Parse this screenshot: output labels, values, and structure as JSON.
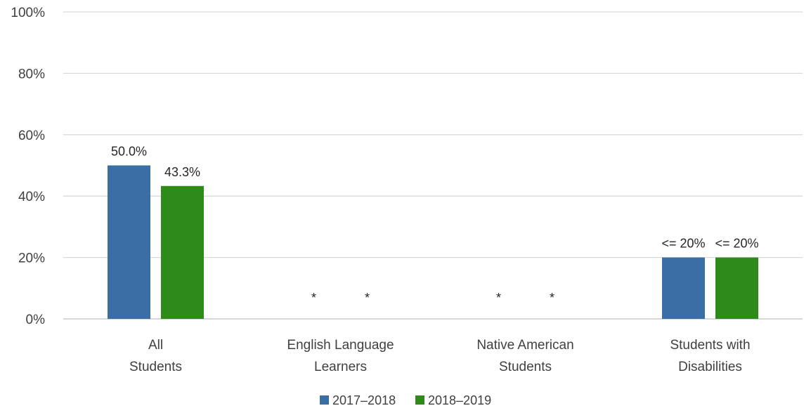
{
  "chart_data": {
    "type": "bar",
    "categories": [
      [
        "All",
        "Students"
      ],
      [
        "English Language",
        "Learners"
      ],
      [
        "Native American",
        "Students"
      ],
      [
        "Students with",
        "Disabilities"
      ]
    ],
    "series": [
      {
        "name": "2017–2018",
        "color": "#3a6ea5",
        "values": [
          50.0,
          null,
          null,
          20
        ],
        "labels": [
          "50.0%",
          "*",
          "*",
          "<= 20%"
        ]
      },
      {
        "name": "2018–2019",
        "color": "#2e8b1a",
        "values": [
          43.3,
          null,
          null,
          20
        ],
        "labels": [
          "43.3%",
          "*",
          "*",
          "<= 20%"
        ]
      }
    ],
    "yticks": [
      "0%",
      "20%",
      "40%",
      "60%",
      "80%",
      "100%"
    ],
    "ylim": [
      0,
      100
    ],
    "grid": true,
    "legend_position": "bottom"
  }
}
